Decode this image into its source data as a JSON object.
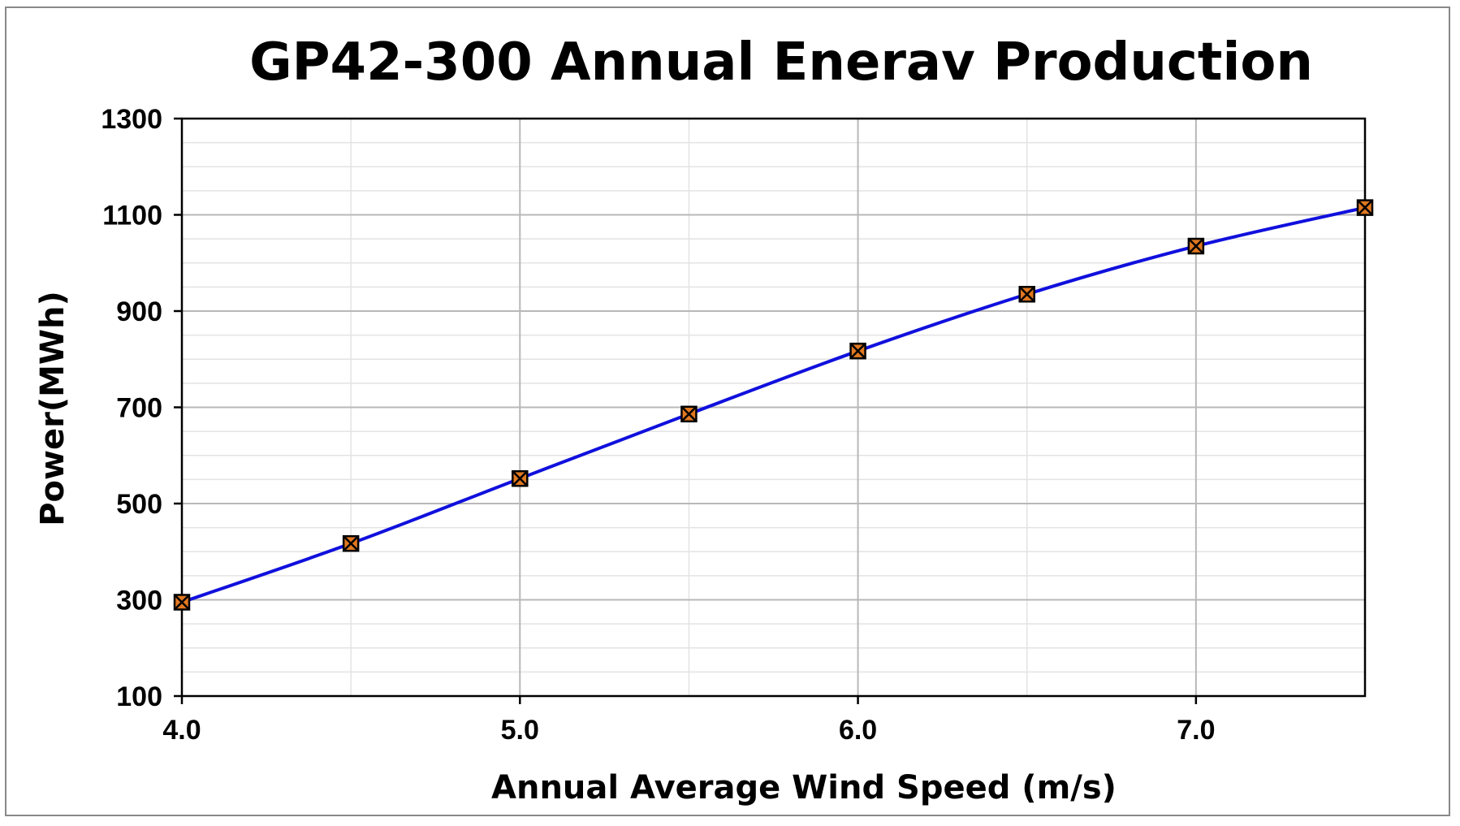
{
  "chart_data": {
    "type": "line",
    "title": "GP42-300 Annual Enerav Production",
    "xlabel": "Annual Average Wind Speed (m/s)",
    "ylabel": "Power(MWh)",
    "xlim": [
      4.0,
      7.5
    ],
    "ylim": [
      100,
      1300
    ],
    "x_ticks": [
      "4.0",
      "5.0",
      "6.0",
      "7.0"
    ],
    "x_tick_values": [
      4.0,
      5.0,
      6.0,
      7.0
    ],
    "y_ticks": [
      "100",
      "300",
      "500",
      "700",
      "900",
      "1100",
      "1300"
    ],
    "y_tick_values": [
      100,
      300,
      500,
      700,
      900,
      1100,
      1300
    ],
    "grid": true,
    "series": [
      {
        "x": [
          4.0,
          4.5,
          5.0,
          5.5,
          6.0,
          6.5,
          7.0,
          7.5
        ],
        "y": [
          295,
          417,
          552,
          686,
          817,
          935,
          1035,
          1115
        ],
        "line_color": "#1010dd",
        "marker": "x-square",
        "marker_fill": "#e07820",
        "marker_edge": "#000000"
      }
    ]
  }
}
